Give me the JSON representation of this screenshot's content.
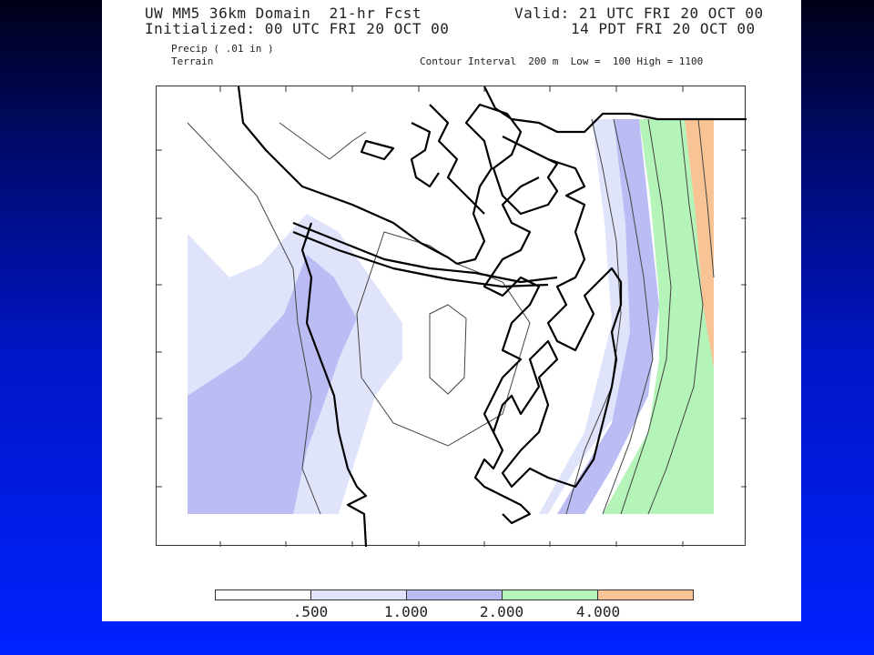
{
  "header": {
    "title_line1": "UW MM5 36km Domain  21-hr Fcst",
    "title_line2": "Initialized: 00 UTC FRI 20 OCT 00",
    "valid_line1": "Valid: 21 UTC FRI 20 OCT 00",
    "valid_line2": "14 PDT FRI 20 OCT 00",
    "field1": "Precip ( .01 in )",
    "field2": "Terrain",
    "contour_info": "Contour Interval  200 m  Low =  100 High = 1100"
  },
  "colors": {
    "none": "#ffffff",
    "c1": "#e0e4fa",
    "c2": "#bcbcf4",
    "c3": "#b4f4b8",
    "c4": "#f8c496",
    "coast": "#000000",
    "terrain": "#444444"
  },
  "legend": {
    "labels": [
      ".500",
      "1.000",
      "2.000",
      "4.000"
    ],
    "colors": [
      "#ffffff",
      "#e0e4fa",
      "#bcbcf4",
      "#b4f4b8",
      "#f8c496"
    ]
  }
}
